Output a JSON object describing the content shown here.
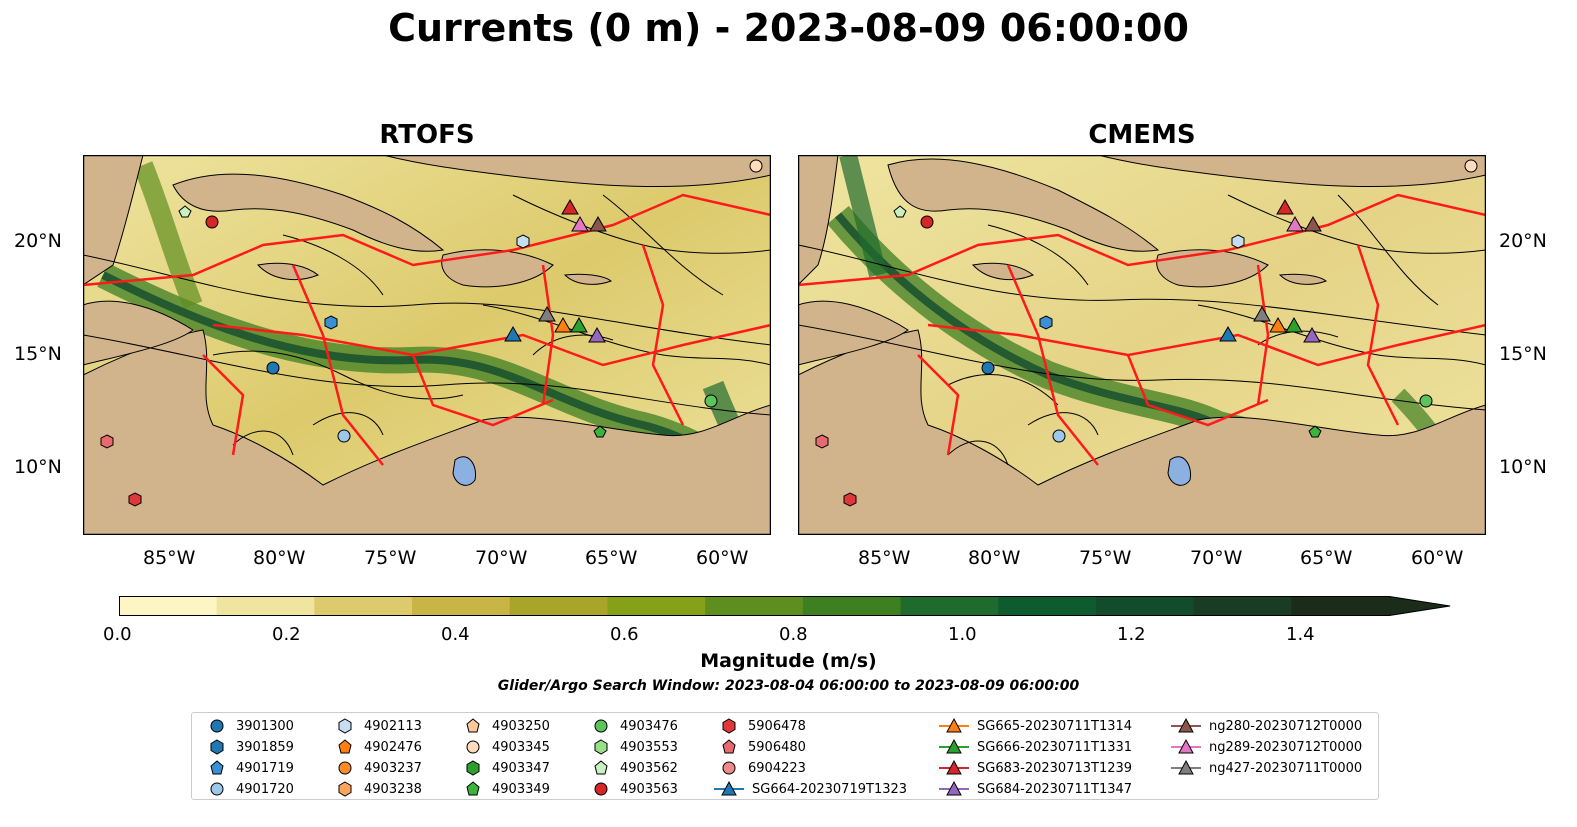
{
  "title": "Currents (0 m) - 2023-08-09 06:00:00",
  "panels": [
    {
      "title": "RTOFS"
    },
    {
      "title": "CMEMS"
    }
  ],
  "map_axes": {
    "lon_ticks": [
      "85°W",
      "80°W",
      "75°W",
      "70°W",
      "65°W",
      "60°W"
    ],
    "lat_ticks": [
      "20°N",
      "15°N",
      "10°N"
    ],
    "lon_range": [
      -89.5,
      -58.5
    ],
    "lat_range": [
      7.0,
      24.0
    ]
  },
  "colors": {
    "land": "#d1b48c",
    "eez_boundary": "#ff1a1a",
    "lakes": "#8cb0e0",
    "colormap": [
      "#fdf5c4",
      "#efe4a0",
      "#dcca6c",
      "#c8b545",
      "#a8a52a",
      "#86a017",
      "#5e8f1e",
      "#3e7f22",
      "#1f6b2d",
      "#0e5b30",
      "#134b2d",
      "#1a3c24",
      "#1b2d1a"
    ]
  },
  "colorbar": {
    "label": "Magnitude (m/s)",
    "ticks": [
      "0.0",
      "0.2",
      "0.4",
      "0.6",
      "0.8",
      "1.0",
      "1.2",
      "1.4"
    ],
    "range": [
      0.0,
      1.55
    ],
    "extend": "max"
  },
  "search_window": "Glider/Argo Search Window: 2023-08-04 06:00:00 to 2023-08-09 06:00:00",
  "legend": [
    {
      "label": "3901300",
      "marker": "circle",
      "color": "#1f77b4"
    },
    {
      "label": "3901859",
      "marker": "hexagon",
      "color": "#1f77b4"
    },
    {
      "label": "4901719",
      "marker": "pentagon",
      "color": "#3b8fd4"
    },
    {
      "label": "4901720",
      "marker": "circle",
      "color": "#9ec8ea"
    },
    {
      "label": "4902113",
      "marker": "hexagon",
      "color": "#c6def2"
    },
    {
      "label": "4902476",
      "marker": "pentagon",
      "color": "#ff7f0e"
    },
    {
      "label": "4903237",
      "marker": "circle",
      "color": "#ff8c2a"
    },
    {
      "label": "4903238",
      "marker": "hexagon",
      "color": "#ffa45c"
    },
    {
      "label": "4903250",
      "marker": "pentagon",
      "color": "#ffc89a"
    },
    {
      "label": "4903345",
      "marker": "circle",
      "color": "#ffdcbe"
    },
    {
      "label": "4903347",
      "marker": "hexagon",
      "color": "#2ca02c"
    },
    {
      "label": "4903349",
      "marker": "pentagon",
      "color": "#3cb43c"
    },
    {
      "label": "4903476",
      "marker": "circle",
      "color": "#5cc45c"
    },
    {
      "label": "4903553",
      "marker": "hexagon",
      "color": "#98df8a"
    },
    {
      "label": "4903562",
      "marker": "pentagon",
      "color": "#c8f0c0"
    },
    {
      "label": "4903563",
      "marker": "circle",
      "color": "#d62728"
    },
    {
      "label": "5906478",
      "marker": "hexagon",
      "color": "#e0373a"
    },
    {
      "label": "5906480",
      "marker": "pentagon",
      "color": "#e86a6f"
    },
    {
      "label": "6904223",
      "marker": "circle",
      "color": "#f08a8a"
    },
    {
      "label": "SG664-20230719T1323",
      "marker": "triangle-line",
      "color": "#1f77b4"
    },
    {
      "label": "SG665-20230711T1314",
      "marker": "triangle-line",
      "color": "#ff7f0e"
    },
    {
      "label": "SG666-20230711T1331",
      "marker": "triangle-line",
      "color": "#2ca02c"
    },
    {
      "label": "SG683-20230713T1239",
      "marker": "triangle-line",
      "color": "#d62728"
    },
    {
      "label": "SG684-20230711T1347",
      "marker": "triangle-line",
      "color": "#9467bd"
    },
    {
      "label": "ng280-20230712T0000",
      "marker": "triangle-line",
      "color": "#8c564b"
    },
    {
      "label": "ng289-20230712T0000",
      "marker": "triangle-line",
      "color": "#e377c2"
    },
    {
      "label": "ng427-20230711T0000",
      "marker": "triangle-line",
      "color": "#7f7f7f"
    }
  ]
}
